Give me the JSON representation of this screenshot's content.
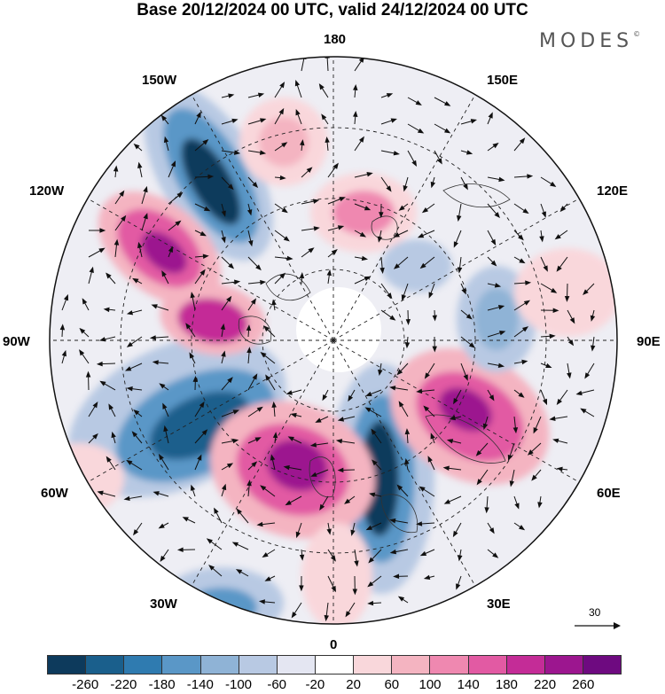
{
  "title": "Base 20/12/2024 00 UTC, valid 24/12/2024 00 UTC",
  "brand": "MODES",
  "brand_mark": "©",
  "longitude_labels": [
    {
      "id": "lon-180",
      "text": "180"
    },
    {
      "id": "lon-150e",
      "text": "150E"
    },
    {
      "id": "lon-120e",
      "text": "120E"
    },
    {
      "id": "lon-90e",
      "text": "90E"
    },
    {
      "id": "lon-60e",
      "text": "60E"
    },
    {
      "id": "lon-30e",
      "text": "30E"
    },
    {
      "id": "lon-0",
      "text": "0"
    },
    {
      "id": "lon-30w",
      "text": "30W"
    },
    {
      "id": "lon-60w",
      "text": "60W"
    },
    {
      "id": "lon-90w",
      "text": "90W"
    },
    {
      "id": "lon-120w",
      "text": "120W"
    },
    {
      "id": "lon-150w",
      "text": "150W"
    }
  ],
  "reference_vector": {
    "label": "30"
  },
  "colorbar": {
    "ticks": [
      "-260",
      "-220",
      "-180",
      "-140",
      "-100",
      "-60",
      "-20",
      "20",
      "60",
      "100",
      "140",
      "180",
      "220",
      "260"
    ],
    "colors": [
      "#0d3a5c",
      "#1a5f8c",
      "#2f7bb0",
      "#5a97c7",
      "#8fb3d6",
      "#b8c9e3",
      "#e4e6f2",
      "#ffffff",
      "#f9d7db",
      "#f4b4c1",
      "#ef88b0",
      "#e25aa3",
      "#c42c97",
      "#9c168f",
      "#6e0a80"
    ]
  }
}
